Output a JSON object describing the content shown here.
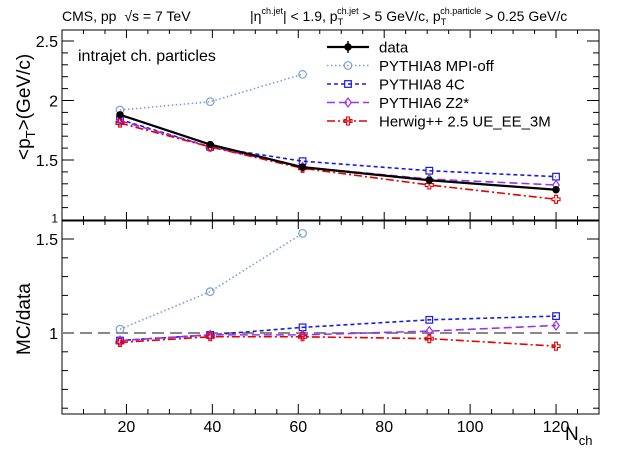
{
  "header": {
    "experiment": "CMS, pp",
    "sqrt_s": "√s",
    "energy": " = 7 TeV",
    "cuts_eta": "|η",
    "cuts_eta_sup": "ch.jet",
    "cuts_eta_rest": "| < 1.9, p",
    "cuts_pt_sub": "T",
    "cuts_pt_sup": "ch.jet",
    "cuts_pt_rest": " > 5 GeV/c, p",
    "cuts_pt2_sub": "T",
    "cuts_pt2_sup": "ch.particle",
    "cuts_pt2_rest": " > 0.25 GeV/c"
  },
  "annotation": "intrajet ch. particles",
  "chart_data": {
    "type": "line",
    "x_label_main": "N",
    "x_label_sub": "ch",
    "top_ylabel_pre": "<p",
    "top_ylabel_sub": "T",
    "top_ylabel_post": ">(GeV/c)",
    "bottom_ylabel": "MC/data",
    "x_range": [
      5,
      130
    ],
    "top_y_range": [
      1.0,
      2.5
    ],
    "bottom_y_range": [
      0.5,
      1.6
    ],
    "x_ticks": [
      20,
      40,
      60,
      80,
      100,
      120
    ],
    "top_y_ticks": [
      1.5,
      2,
      2.5
    ],
    "top_y_tick_labels": [
      "1.5",
      "2",
      "2.5"
    ],
    "top_y_extra_tick": 1.0,
    "top_y_extra_label": "1",
    "bottom_y_ticks": [
      1,
      1.5
    ],
    "bottom_y_tick_labels": [
      "1",
      "1.5"
    ],
    "reference_line": 1.0,
    "legend_position": "top-right",
    "series": [
      {
        "name": "data",
        "color": "#000000",
        "dash": "",
        "marker": "filled-circle",
        "x": [
          18.5,
          39.5,
          61.0,
          90.5,
          120.0
        ],
        "top": [
          1.88,
          1.63,
          1.44,
          1.33,
          1.25
        ],
        "ratio": null
      },
      {
        "name": "PYTHIA8 MPI-off",
        "color": "#7a9fd6",
        "dash": "1.5,2.5",
        "marker": "open-circle",
        "x": [
          18.5,
          39.5,
          61.0
        ],
        "top": [
          1.92,
          1.99,
          2.22
        ],
        "ratio": [
          1.02,
          1.22,
          1.53
        ]
      },
      {
        "name": "PYTHIA8 4C",
        "color": "#1a1ae6",
        "dash": "4,3",
        "marker": "open-square",
        "x": [
          18.5,
          39.5,
          61.0,
          90.5,
          120.0
        ],
        "top": [
          1.84,
          1.61,
          1.49,
          1.41,
          1.36
        ],
        "ratio": [
          0.96,
          0.99,
          1.03,
          1.07,
          1.09
        ]
      },
      {
        "name": "PYTHIA6 Z2*",
        "color": "#9b30f0",
        "dash": "8,4",
        "marker": "open-diamond",
        "x": [
          18.5,
          39.5,
          61.0,
          90.5,
          120.0
        ],
        "top": [
          1.83,
          1.61,
          1.44,
          1.34,
          1.29
        ],
        "ratio": [
          0.96,
          0.99,
          0.99,
          1.01,
          1.04
        ]
      },
      {
        "name": "Herwig++ 2.5  UE_EE_3M",
        "color": "#e60000",
        "dash": "8,3,2,3",
        "marker": "open-cross",
        "x": [
          18.5,
          39.5,
          61.0,
          90.5,
          120.0
        ],
        "top": [
          1.81,
          1.61,
          1.43,
          1.29,
          1.17
        ],
        "ratio": [
          0.95,
          0.98,
          0.98,
          0.97,
          0.93
        ]
      }
    ]
  }
}
